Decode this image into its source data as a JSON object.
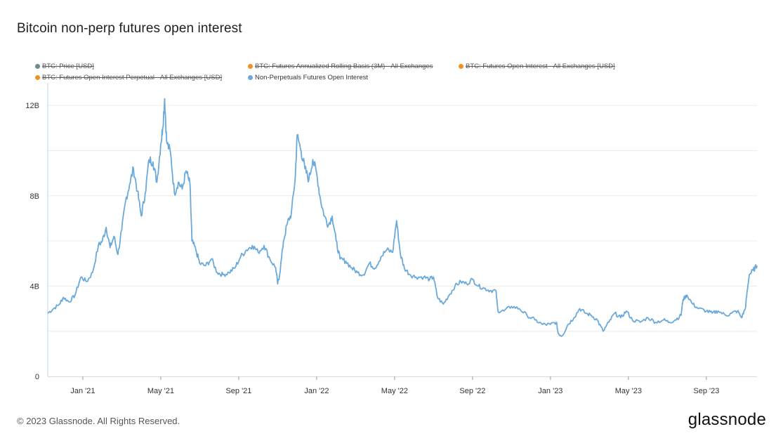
{
  "title": "Bitcoin non-perp futures open interest",
  "legend": [
    {
      "label": "BTC: Price [USD]",
      "color": "#6f8a92",
      "disabled": true
    },
    {
      "label": "BTC: Futures Annualized Rolling Basis (3M) - All Exchanges",
      "color": "#f0921e",
      "disabled": true
    },
    {
      "label": "BTC: Futures Open Interest - All Exchanges [USD]",
      "color": "#f0921e",
      "disabled": true
    },
    {
      "label": "BTC: Futures Open Interest Perpetual - All Exchanges [USD]",
      "color": "#f0921e",
      "disabled": true
    },
    {
      "label": "Non-Perpetuals Futures Open Interest",
      "color": "#6aa9da",
      "disabled": false
    }
  ],
  "chart_data": {
    "type": "line",
    "title": "Bitcoin non-perp futures open interest",
    "xlabel": "",
    "ylabel": "",
    "ylim": [
      0,
      13
    ],
    "y_ticks": [
      0,
      4,
      8,
      12
    ],
    "y_tick_labels": [
      "0",
      "4B",
      "8B",
      "12B"
    ],
    "x_tick_labels": [
      "Jan '21",
      "May '21",
      "Sep '21",
      "Jan '22",
      "May '22",
      "Sep '22",
      "Jan '23",
      "May '23",
      "Sep '23"
    ],
    "x_tick_months": [
      2.0,
      6.0,
      10.0,
      14.0,
      18.0,
      22.0,
      26.0,
      30.0,
      34.0
    ],
    "x_range_months": [
      0.2,
      36.6
    ],
    "grid": true,
    "series": [
      {
        "name": "Non-Perpetuals Futures Open Interest",
        "color": "#6aa9da",
        "unit": "billions USD",
        "points": [
          [
            0.2,
            2.8
          ],
          [
            0.5,
            3.0
          ],
          [
            0.8,
            3.2
          ],
          [
            1.0,
            3.5
          ],
          [
            1.3,
            3.3
          ],
          [
            1.6,
            3.6
          ],
          [
            1.9,
            4.4
          ],
          [
            2.2,
            4.2
          ],
          [
            2.5,
            4.6
          ],
          [
            2.8,
            5.8
          ],
          [
            3.0,
            6.0
          ],
          [
            3.2,
            6.6
          ],
          [
            3.4,
            5.7
          ],
          [
            3.6,
            6.2
          ],
          [
            3.8,
            5.4
          ],
          [
            4.0,
            6.5
          ],
          [
            4.2,
            7.8
          ],
          [
            4.4,
            8.5
          ],
          [
            4.6,
            9.2
          ],
          [
            4.8,
            8.2
          ],
          [
            5.0,
            7.1
          ],
          [
            5.2,
            8.1
          ],
          [
            5.4,
            9.6
          ],
          [
            5.6,
            9.5
          ],
          [
            5.8,
            8.6
          ],
          [
            6.0,
            10.3
          ],
          [
            6.1,
            11.0
          ],
          [
            6.2,
            12.3
          ],
          [
            6.3,
            10.4
          ],
          [
            6.5,
            9.9
          ],
          [
            6.7,
            8.1
          ],
          [
            6.9,
            8.6
          ],
          [
            7.1,
            8.3
          ],
          [
            7.3,
            9.1
          ],
          [
            7.5,
            8.5
          ],
          [
            7.6,
            6.0
          ],
          [
            7.8,
            5.6
          ],
          [
            8.0,
            5.0
          ],
          [
            8.3,
            4.9
          ],
          [
            8.6,
            5.2
          ],
          [
            8.9,
            4.6
          ],
          [
            9.2,
            4.5
          ],
          [
            9.5,
            4.6
          ],
          [
            9.8,
            4.8
          ],
          [
            10.1,
            5.3
          ],
          [
            10.4,
            5.6
          ],
          [
            10.7,
            5.8
          ],
          [
            11.0,
            5.5
          ],
          [
            11.3,
            5.8
          ],
          [
            11.6,
            5.2
          ],
          [
            11.9,
            4.8
          ],
          [
            12.0,
            4.1
          ],
          [
            12.1,
            4.5
          ],
          [
            12.3,
            6.0
          ],
          [
            12.5,
            6.8
          ],
          [
            12.7,
            7.2
          ],
          [
            12.9,
            8.8
          ],
          [
            13.0,
            10.7
          ],
          [
            13.2,
            10.0
          ],
          [
            13.4,
            9.2
          ],
          [
            13.6,
            8.7
          ],
          [
            13.8,
            9.6
          ],
          [
            14.0,
            9.0
          ],
          [
            14.2,
            7.8
          ],
          [
            14.4,
            7.1
          ],
          [
            14.6,
            6.7
          ],
          [
            14.8,
            7.1
          ],
          [
            15.0,
            6.0
          ],
          [
            15.2,
            5.2
          ],
          [
            15.5,
            5.1
          ],
          [
            15.8,
            4.8
          ],
          [
            16.1,
            4.6
          ],
          [
            16.4,
            4.5
          ],
          [
            16.7,
            5.0
          ],
          [
            17.0,
            4.8
          ],
          [
            17.3,
            5.3
          ],
          [
            17.6,
            5.6
          ],
          [
            17.9,
            5.5
          ],
          [
            18.1,
            6.9
          ],
          [
            18.3,
            5.4
          ],
          [
            18.5,
            4.8
          ],
          [
            18.8,
            4.5
          ],
          [
            19.1,
            4.4
          ],
          [
            19.5,
            4.4
          ],
          [
            19.8,
            4.3
          ],
          [
            20.0,
            4.4
          ],
          [
            20.2,
            3.5
          ],
          [
            20.5,
            3.2
          ],
          [
            20.8,
            3.6
          ],
          [
            21.1,
            4.0
          ],
          [
            21.4,
            4.2
          ],
          [
            21.7,
            4.1
          ],
          [
            22.0,
            4.3
          ],
          [
            22.3,
            4.0
          ],
          [
            22.6,
            3.9
          ],
          [
            22.9,
            3.8
          ],
          [
            23.2,
            3.8
          ],
          [
            23.3,
            2.9
          ],
          [
            23.6,
            2.9
          ],
          [
            24.0,
            3.1
          ],
          [
            24.4,
            3.0
          ],
          [
            24.8,
            2.7
          ],
          [
            25.2,
            2.5
          ],
          [
            25.6,
            2.3
          ],
          [
            26.0,
            2.3
          ],
          [
            26.3,
            2.4
          ],
          [
            26.4,
            1.9
          ],
          [
            26.6,
            1.8
          ],
          [
            26.9,
            2.3
          ],
          [
            27.2,
            2.6
          ],
          [
            27.5,
            3.0
          ],
          [
            27.8,
            2.8
          ],
          [
            28.1,
            2.7
          ],
          [
            28.4,
            2.5
          ],
          [
            28.7,
            2.0
          ],
          [
            29.0,
            2.4
          ],
          [
            29.3,
            2.8
          ],
          [
            29.6,
            2.6
          ],
          [
            29.9,
            2.9
          ],
          [
            30.2,
            2.5
          ],
          [
            30.6,
            2.4
          ],
          [
            31.0,
            2.6
          ],
          [
            31.4,
            2.4
          ],
          [
            31.8,
            2.5
          ],
          [
            32.1,
            2.4
          ],
          [
            32.4,
            2.5
          ],
          [
            32.7,
            2.7
          ],
          [
            32.8,
            3.4
          ],
          [
            33.0,
            3.6
          ],
          [
            33.3,
            3.2
          ],
          [
            33.6,
            3.0
          ],
          [
            34.0,
            2.9
          ],
          [
            34.3,
            2.8
          ],
          [
            34.6,
            2.9
          ],
          [
            35.0,
            2.7
          ],
          [
            35.3,
            2.8
          ],
          [
            35.6,
            2.9
          ],
          [
            35.8,
            2.6
          ],
          [
            36.0,
            3.0
          ],
          [
            36.1,
            3.8
          ],
          [
            36.2,
            4.5
          ],
          [
            36.4,
            4.7
          ],
          [
            36.6,
            4.9
          ]
        ]
      }
    ]
  },
  "footer": {
    "copyright": "© 2023 Glassnode. All Rights Reserved.",
    "brand": "glassnode"
  }
}
